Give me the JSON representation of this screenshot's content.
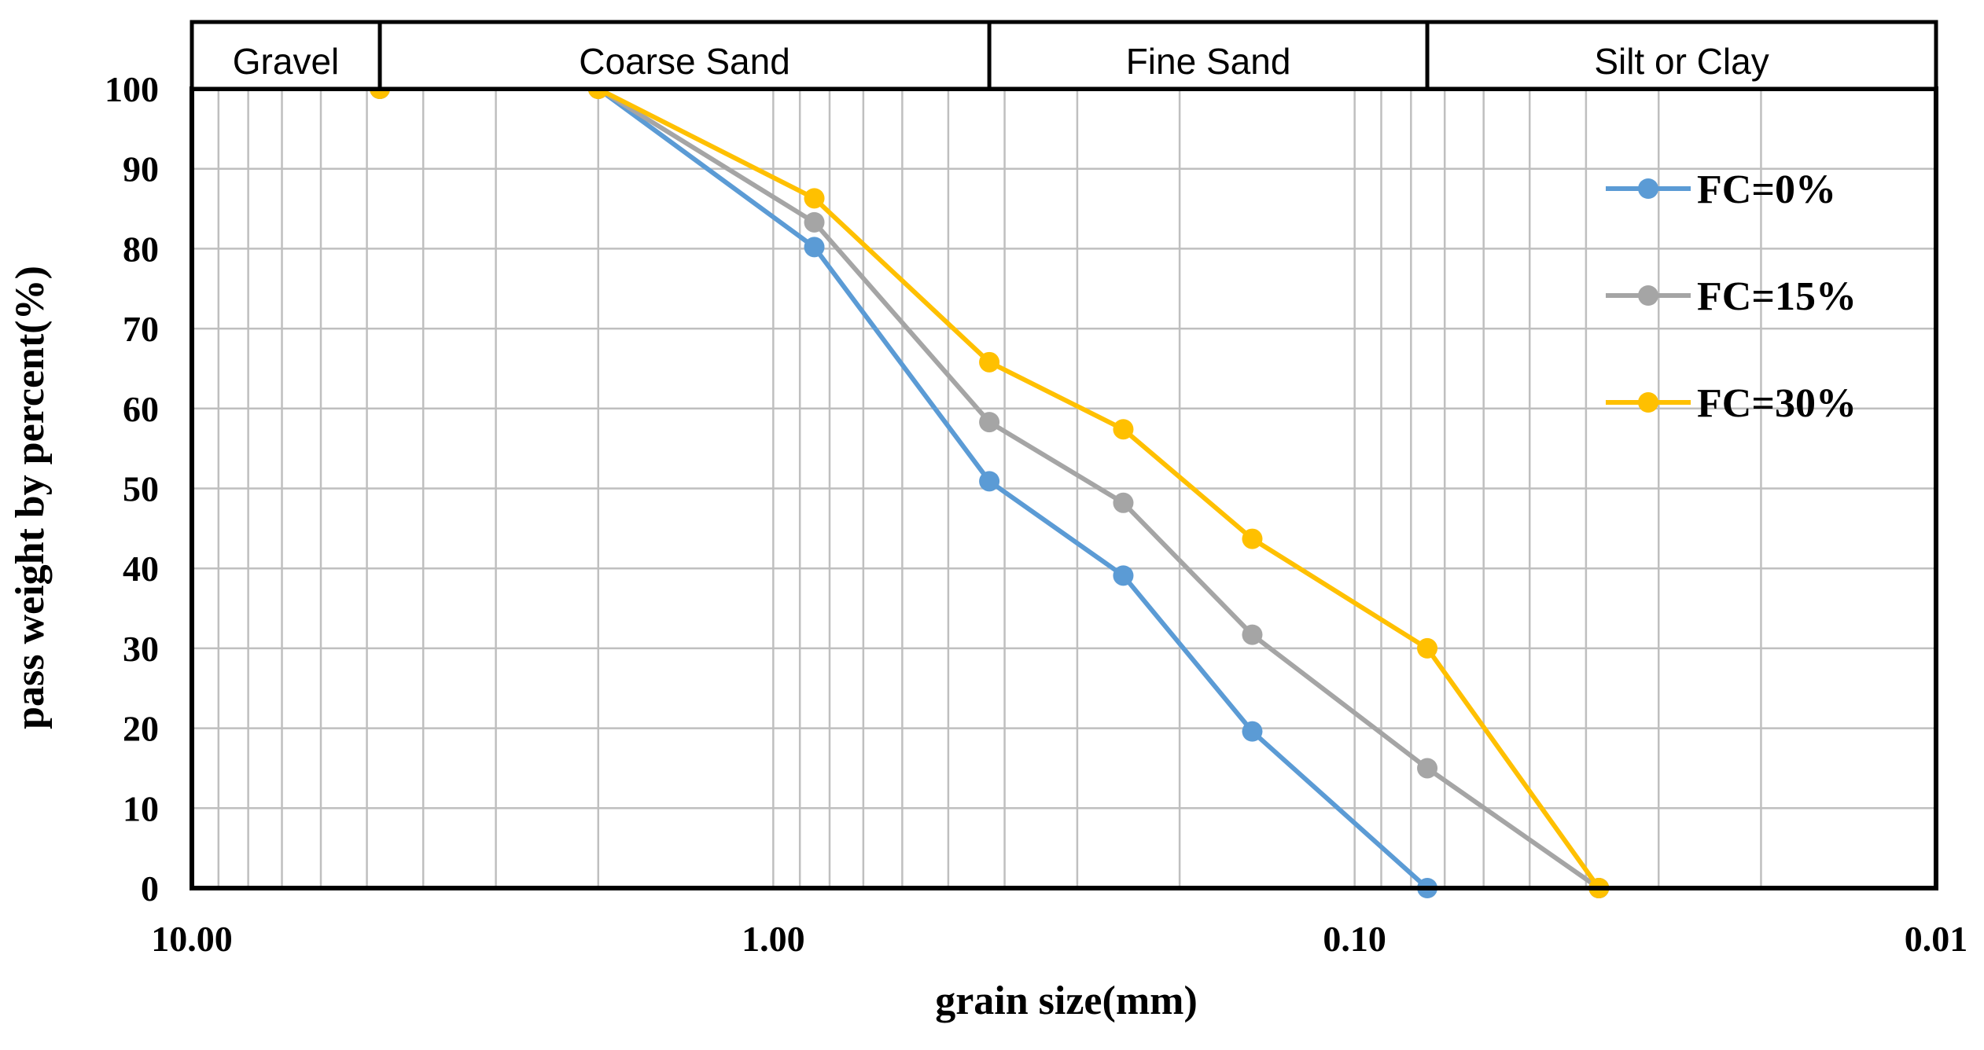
{
  "chart_data": {
    "type": "line",
    "xlabel": "grain size(mm)",
    "ylabel": "pass weight by percent(%)",
    "x_scale": "log",
    "x_reversed": true,
    "xlim": [
      10,
      0.01
    ],
    "ylim": [
      0,
      100
    ],
    "x_ticks": [
      10,
      1,
      0.1,
      0.01
    ],
    "x_tick_labels": [
      "10.00",
      "1.00",
      "0.10",
      "0.01"
    ],
    "y_ticks": [
      0,
      10,
      20,
      30,
      40,
      50,
      60,
      70,
      80,
      90,
      100
    ],
    "grid": true,
    "legend_position": "top-right",
    "zones": [
      {
        "label": "Gravel",
        "from": 10,
        "to": 4.75
      },
      {
        "label": "Coarse Sand",
        "from": 4.75,
        "to": 0.425
      },
      {
        "label": "Fine Sand",
        "from": 0.425,
        "to": 0.075
      },
      {
        "label": "Silt or Clay",
        "from": 0.075,
        "to": 0.01
      }
    ],
    "series": [
      {
        "name": "FC=0%",
        "color": "#5B9BD5",
        "x": [
          4.75,
          2.0,
          0.85,
          0.425,
          0.25,
          0.15,
          0.075,
          0.038
        ],
        "y": [
          100,
          100,
          80.2,
          50.9,
          39.1,
          19.6,
          0,
          0
        ]
      },
      {
        "name": "FC=15%",
        "color": "#A5A5A5",
        "x": [
          4.75,
          2.0,
          0.85,
          0.425,
          0.25,
          0.15,
          0.075,
          0.038
        ],
        "y": [
          100,
          100,
          83.3,
          58.3,
          48.2,
          31.7,
          15.0,
          0
        ]
      },
      {
        "name": "FC=30%",
        "color": "#FFC000",
        "x": [
          4.75,
          2.0,
          0.85,
          0.425,
          0.25,
          0.15,
          0.075,
          0.038
        ],
        "y": [
          100,
          100,
          86.3,
          65.8,
          57.4,
          43.7,
          30.0,
          0
        ]
      }
    ]
  }
}
